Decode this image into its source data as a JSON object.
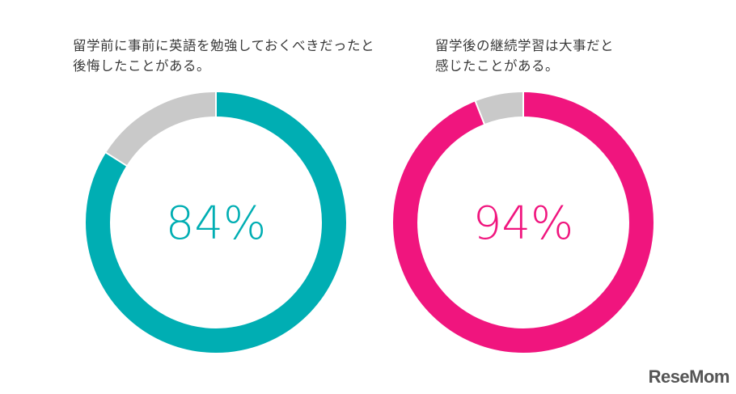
{
  "chart_data": [
    {
      "type": "pie",
      "title_lines": [
        "留学前に事前に英語を勉強しておくべきだったと",
        "後悔したことがある。"
      ],
      "value": 84,
      "label": "84%",
      "colors": {
        "value": "#00AEB3",
        "rest": "#C9C9C9",
        "label": "#00AEB3"
      }
    },
    {
      "type": "pie",
      "title_lines": [
        "留学後の継続学習は大事だと",
        "感じたことがある。"
      ],
      "value": 94,
      "label": "94%",
      "colors": {
        "value": "#F0157E",
        "rest": "#C9C9C9",
        "label": "#F0157E"
      }
    }
  ],
  "watermark": {
    "text": "ReseMom"
  }
}
